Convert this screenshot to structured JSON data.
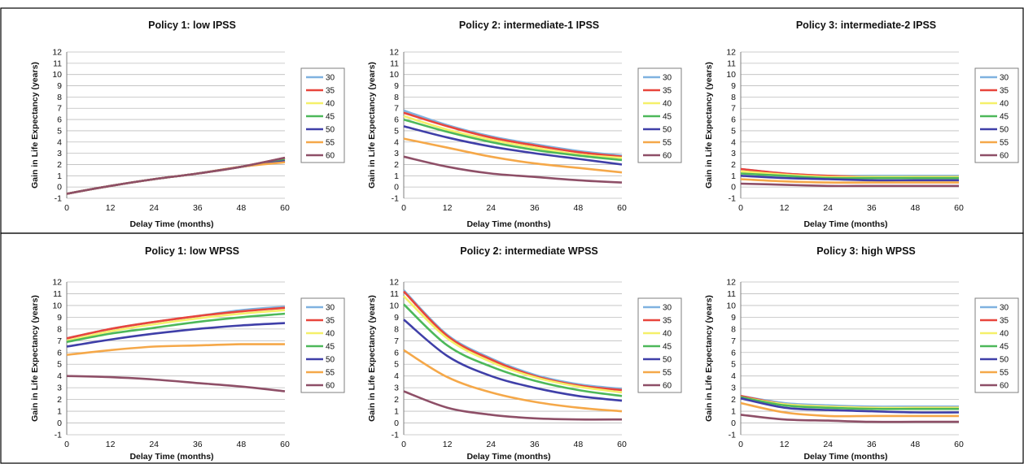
{
  "figure": {
    "y_axis_label": "Gain in Life Expectancy (years)",
    "x_axis_label": "Delay Time (months)"
  },
  "chart_data": [
    {
      "type": "line",
      "title": "Policy 1: low IPSS",
      "xlabel": "Delay Time (months)",
      "ylabel": "Gain in Life Expectancy (years)",
      "xlim": [
        0,
        60
      ],
      "ylim": [
        -1,
        12
      ],
      "xticks": [
        0,
        12,
        24,
        36,
        48,
        60
      ],
      "yticks": [
        -1,
        0,
        1,
        2,
        3,
        4,
        5,
        6,
        7,
        8,
        9,
        10,
        11,
        12
      ],
      "grid": true,
      "legend": "right",
      "x": [
        0,
        12,
        24,
        36,
        48,
        60
      ],
      "series": [
        {
          "name": "30",
          "color": "#7fb2e0",
          "values": [
            -0.6,
            0.1,
            0.7,
            1.2,
            1.8,
            2.6
          ]
        },
        {
          "name": "35",
          "color": "#e8453c",
          "values": [
            -0.6,
            0.1,
            0.7,
            1.2,
            1.8,
            2.6
          ]
        },
        {
          "name": "40",
          "color": "#f5f06a",
          "values": [
            -0.6,
            0.1,
            0.7,
            1.2,
            1.8,
            2.5
          ]
        },
        {
          "name": "45",
          "color": "#4db85a",
          "values": [
            -0.6,
            0.1,
            0.7,
            1.2,
            1.8,
            2.4
          ]
        },
        {
          "name": "50",
          "color": "#3f3fa8",
          "values": [
            -0.6,
            0.1,
            0.7,
            1.2,
            1.8,
            2.3
          ]
        },
        {
          "name": "55",
          "color": "#f5a849",
          "values": [
            -0.6,
            0.1,
            0.7,
            1.2,
            1.8,
            2.2
          ]
        },
        {
          "name": "60",
          "color": "#8e4f67",
          "values": [
            -0.6,
            0.1,
            0.7,
            1.2,
            1.8,
            2.6
          ]
        }
      ]
    },
    {
      "type": "line",
      "title": "Policy 2: intermediate-1 IPSS",
      "xlabel": "Delay Time (months)",
      "ylabel": "Gain in Life Expectancy (years)",
      "xlim": [
        0,
        60
      ],
      "ylim": [
        -1,
        12
      ],
      "xticks": [
        0,
        12,
        24,
        36,
        48,
        60
      ],
      "yticks": [
        -1,
        0,
        1,
        2,
        3,
        4,
        5,
        6,
        7,
        8,
        9,
        10,
        11,
        12
      ],
      "grid": true,
      "legend": "right",
      "x": [
        0,
        12,
        24,
        36,
        48,
        60
      ],
      "series": [
        {
          "name": "30",
          "color": "#7fb2e0",
          "values": [
            6.8,
            5.5,
            4.5,
            3.8,
            3.2,
            2.8
          ]
        },
        {
          "name": "35",
          "color": "#e8453c",
          "values": [
            6.6,
            5.4,
            4.4,
            3.7,
            3.1,
            2.7
          ]
        },
        {
          "name": "40",
          "color": "#f5f06a",
          "values": [
            6.3,
            5.1,
            4.2,
            3.5,
            2.9,
            2.6
          ]
        },
        {
          "name": "45",
          "color": "#4db85a",
          "values": [
            6.0,
            4.9,
            4.0,
            3.3,
            2.8,
            2.4
          ]
        },
        {
          "name": "50",
          "color": "#3f3fa8",
          "values": [
            5.4,
            4.4,
            3.6,
            3.0,
            2.5,
            2.0
          ]
        },
        {
          "name": "55",
          "color": "#f5a849",
          "values": [
            4.3,
            3.5,
            2.7,
            2.1,
            1.7,
            1.3
          ]
        },
        {
          "name": "60",
          "color": "#8e4f67",
          "values": [
            2.7,
            1.8,
            1.2,
            0.9,
            0.6,
            0.4
          ]
        }
      ]
    },
    {
      "type": "line",
      "title": "Policy 3: intermediate-2 IPSS",
      "xlabel": "Delay Time (months)",
      "ylabel": "Gain in Life Expectancy (years)",
      "xlim": [
        0,
        60
      ],
      "ylim": [
        -1,
        12
      ],
      "xticks": [
        0,
        12,
        24,
        36,
        48,
        60
      ],
      "yticks": [
        -1,
        0,
        1,
        2,
        3,
        4,
        5,
        6,
        7,
        8,
        9,
        10,
        11,
        12
      ],
      "grid": true,
      "legend": "right",
      "x": [
        0,
        12,
        24,
        36,
        48,
        60
      ],
      "series": [
        {
          "name": "30",
          "color": "#7fb2e0",
          "values": [
            1.6,
            1.2,
            1.0,
            1.0,
            1.0,
            1.0
          ]
        },
        {
          "name": "35",
          "color": "#e8453c",
          "values": [
            1.6,
            1.2,
            1.0,
            0.9,
            0.9,
            0.9
          ]
        },
        {
          "name": "40",
          "color": "#f5f06a",
          "values": [
            1.4,
            1.1,
            0.9,
            0.9,
            0.9,
            0.9
          ]
        },
        {
          "name": "45",
          "color": "#4db85a",
          "values": [
            1.2,
            1.0,
            0.8,
            0.8,
            0.8,
            0.8
          ]
        },
        {
          "name": "50",
          "color": "#3f3fa8",
          "values": [
            1.0,
            0.8,
            0.7,
            0.6,
            0.6,
            0.6
          ]
        },
        {
          "name": "55",
          "color": "#f5a849",
          "values": [
            0.7,
            0.5,
            0.4,
            0.4,
            0.4,
            0.4
          ]
        },
        {
          "name": "60",
          "color": "#8e4f67",
          "values": [
            0.3,
            0.2,
            0.1,
            0.1,
            0.1,
            0.1
          ]
        }
      ]
    },
    {
      "type": "line",
      "title": "Policy 1: low WPSS",
      "xlabel": "Delay Time (months)",
      "ylabel": "Gain in Life Expectancy (years)",
      "xlim": [
        0,
        60
      ],
      "ylim": [
        -1,
        12
      ],
      "xticks": [
        0,
        12,
        24,
        36,
        48,
        60
      ],
      "yticks": [
        -1,
        0,
        1,
        2,
        3,
        4,
        5,
        6,
        7,
        8,
        9,
        10,
        11,
        12
      ],
      "grid": true,
      "legend": "right",
      "x": [
        0,
        12,
        24,
        36,
        48,
        60
      ],
      "series": [
        {
          "name": "30",
          "color": "#7fb2e0",
          "values": [
            7.2,
            8.0,
            8.6,
            9.1,
            9.6,
            9.9
          ]
        },
        {
          "name": "35",
          "color": "#e8453c",
          "values": [
            7.2,
            8.0,
            8.6,
            9.1,
            9.5,
            9.8
          ]
        },
        {
          "name": "40",
          "color": "#f5f06a",
          "values": [
            7.0,
            7.8,
            8.4,
            8.9,
            9.3,
            9.6
          ]
        },
        {
          "name": "45",
          "color": "#4db85a",
          "values": [
            6.9,
            7.6,
            8.1,
            8.6,
            9.0,
            9.3
          ]
        },
        {
          "name": "50",
          "color": "#3f3fa8",
          "values": [
            6.5,
            7.1,
            7.6,
            8.0,
            8.3,
            8.5
          ]
        },
        {
          "name": "55",
          "color": "#f5a849",
          "values": [
            5.8,
            6.2,
            6.5,
            6.6,
            6.7,
            6.7
          ]
        },
        {
          "name": "60",
          "color": "#8e4f67",
          "values": [
            4.0,
            3.9,
            3.7,
            3.4,
            3.1,
            2.7
          ]
        }
      ]
    },
    {
      "type": "line",
      "title": "Policy 2: intermediate WPSS",
      "xlabel": "Delay Time (months)",
      "ylabel": "Gain in Life Expectancy (years)",
      "xlim": [
        0,
        60
      ],
      "ylim": [
        -1,
        12
      ],
      "xticks": [
        0,
        12,
        24,
        36,
        48,
        60
      ],
      "yticks": [
        -1,
        0,
        1,
        2,
        3,
        4,
        5,
        6,
        7,
        8,
        9,
        10,
        11,
        12
      ],
      "grid": true,
      "legend": "right",
      "x": [
        0,
        12,
        24,
        36,
        48,
        60
      ],
      "series": [
        {
          "name": "30",
          "color": "#7fb2e0",
          "values": [
            11.3,
            7.5,
            5.5,
            4.1,
            3.3,
            2.9
          ]
        },
        {
          "name": "35",
          "color": "#e8453c",
          "values": [
            11.2,
            7.4,
            5.4,
            4.0,
            3.2,
            2.8
          ]
        },
        {
          "name": "40",
          "color": "#f5f06a",
          "values": [
            10.8,
            7.2,
            5.2,
            3.9,
            3.1,
            2.6
          ]
        },
        {
          "name": "45",
          "color": "#4db85a",
          "values": [
            10.1,
            6.6,
            4.8,
            3.6,
            2.8,
            2.3
          ]
        },
        {
          "name": "50",
          "color": "#3f3fa8",
          "values": [
            8.8,
            5.7,
            4.0,
            3.0,
            2.3,
            1.9
          ]
        },
        {
          "name": "55",
          "color": "#f5a849",
          "values": [
            6.2,
            3.9,
            2.6,
            1.8,
            1.3,
            1.0
          ]
        },
        {
          "name": "60",
          "color": "#8e4f67",
          "values": [
            2.7,
            1.3,
            0.7,
            0.4,
            0.3,
            0.3
          ]
        }
      ]
    },
    {
      "type": "line",
      "title": "Policy 3: high WPSS",
      "xlabel": "Delay Time (months)",
      "ylabel": "Gain in Life Expectancy (years)",
      "xlim": [
        0,
        60
      ],
      "ylim": [
        -1,
        12
      ],
      "xticks": [
        0,
        12,
        24,
        36,
        48,
        60
      ],
      "yticks": [
        -1,
        0,
        1,
        2,
        3,
        4,
        5,
        6,
        7,
        8,
        9,
        10,
        11,
        12
      ],
      "grid": true,
      "legend": "right",
      "x": [
        0,
        12,
        24,
        36,
        48,
        60
      ],
      "series": [
        {
          "name": "30",
          "color": "#7fb2e0",
          "values": [
            2.3,
            1.7,
            1.5,
            1.4,
            1.4,
            1.4
          ]
        },
        {
          "name": "35",
          "color": "#e8453c",
          "values": [
            2.3,
            1.6,
            1.4,
            1.3,
            1.3,
            1.3
          ]
        },
        {
          "name": "40",
          "color": "#f5f06a",
          "values": [
            2.2,
            1.6,
            1.4,
            1.3,
            1.3,
            1.3
          ]
        },
        {
          "name": "45",
          "color": "#4db85a",
          "values": [
            2.2,
            1.5,
            1.3,
            1.2,
            1.2,
            1.2
          ]
        },
        {
          "name": "50",
          "color": "#3f3fa8",
          "values": [
            2.1,
            1.3,
            1.1,
            1.0,
            0.9,
            0.9
          ]
        },
        {
          "name": "55",
          "color": "#f5a849",
          "values": [
            1.7,
            0.9,
            0.6,
            0.6,
            0.6,
            0.6
          ]
        },
        {
          "name": "60",
          "color": "#8e4f67",
          "values": [
            0.7,
            0.3,
            0.2,
            0.1,
            0.1,
            0.1
          ]
        }
      ]
    }
  ]
}
